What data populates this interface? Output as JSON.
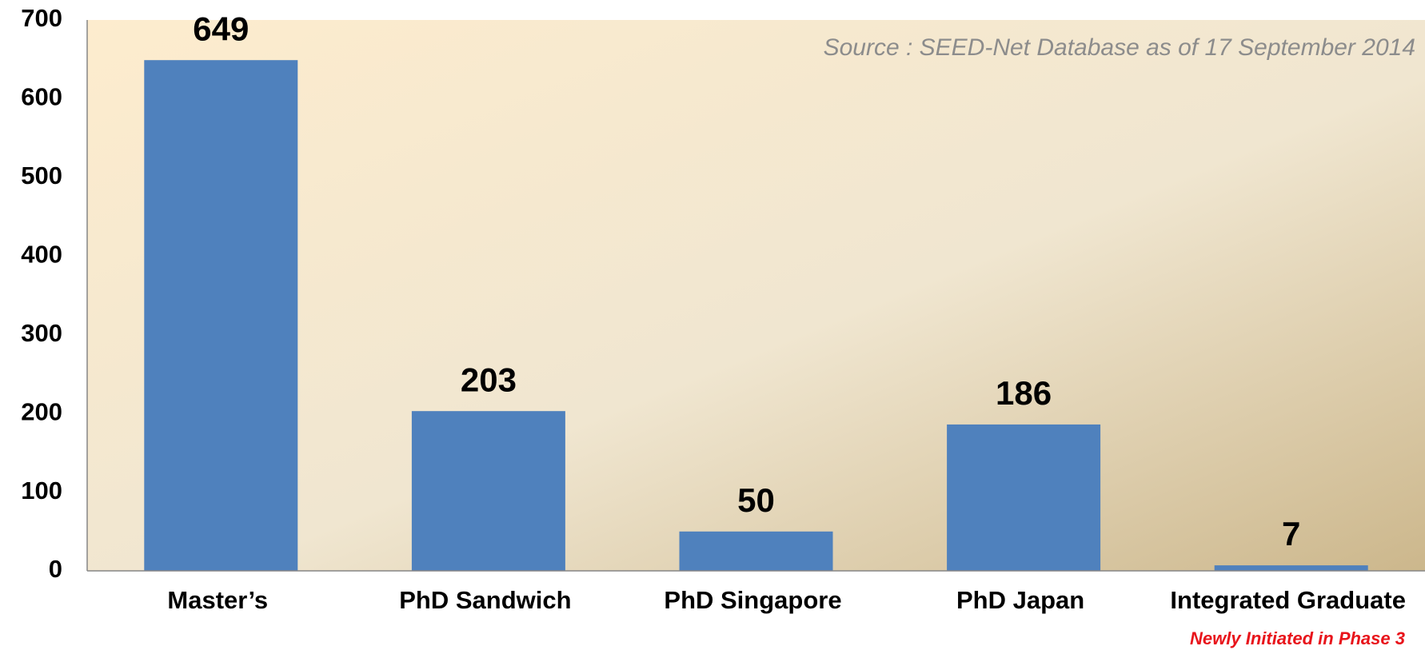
{
  "chart_data": {
    "type": "bar",
    "categories": [
      "Master’s",
      "PhD Sandwich",
      "PhD Singapore",
      "PhD Japan",
      "Integrated Graduate"
    ],
    "values": [
      649,
      203,
      50,
      186,
      7
    ],
    "color": "#4f81bd",
    "ylim": [
      0,
      700
    ],
    "yticks": [
      0,
      100,
      200,
      300,
      400,
      500,
      600,
      700
    ],
    "annotations": [
      "Source : SEED-Net Database as of 17 September 2014",
      "Newly Initiated in Phase 3"
    ]
  }
}
